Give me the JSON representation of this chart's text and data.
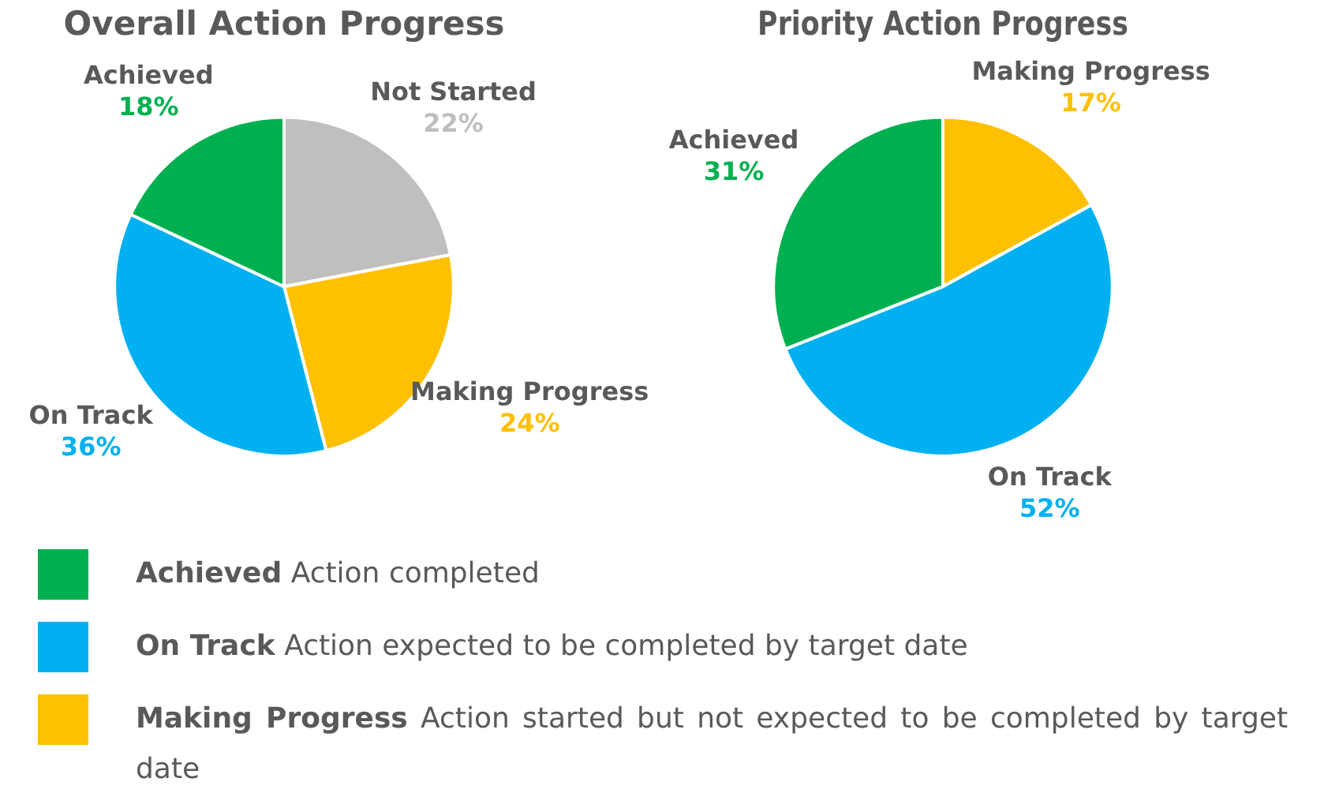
{
  "chart_data": [
    {
      "type": "pie",
      "title": "Overall Action Progress",
      "categories": [
        "Not Started",
        "Making Progress",
        "On Track",
        "Achieved"
      ],
      "values": [
        22,
        24,
        36,
        18
      ],
      "colors": [
        "#bfbfbf",
        "#ffc000",
        "#00b0f0",
        "#00b050"
      ],
      "value_labels": [
        "22%",
        "24%",
        "36%",
        "18%"
      ]
    },
    {
      "type": "pie",
      "title": "Priority Action Progress",
      "categories": [
        "Making Progress",
        "On Track",
        "Achieved"
      ],
      "values": [
        17,
        52,
        31
      ],
      "colors": [
        "#ffc000",
        "#00b0f0",
        "#00b050"
      ],
      "value_labels": [
        "17%",
        "52%",
        "31%"
      ],
      "legend": "bottom",
      "annotations": [
        "Action completed",
        "Action expected to be completed by target date",
        "Action started but not expected to be completed by target date"
      ]
    }
  ]
}
